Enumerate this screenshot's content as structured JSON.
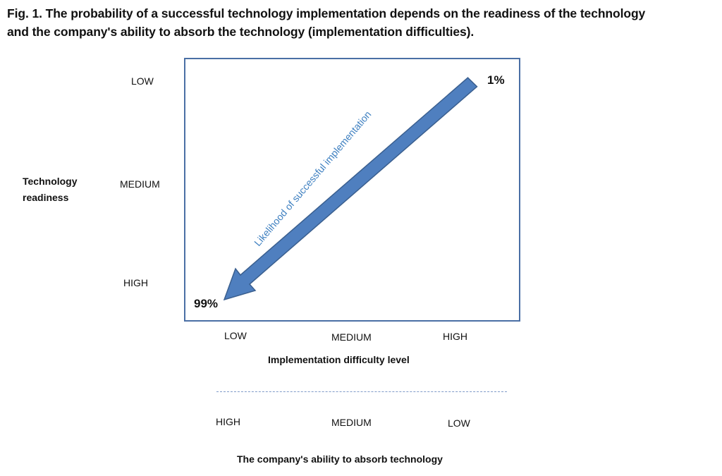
{
  "figure": {
    "caption_line1": "Fig. 1. The probability of a successful technology implementation depends on the readiness of the technology",
    "caption_line2": "and the company's ability to absorb the technology (implementation difficulties)."
  },
  "y_axis": {
    "title_line1": "Technology",
    "title_line2": "readiness",
    "levels": [
      "LOW",
      "MEDIUM",
      "HIGH"
    ]
  },
  "x_axis_top": {
    "levels": [
      "LOW",
      "MEDIUM",
      "HIGH"
    ],
    "title": "Implementation difficulty level"
  },
  "x_axis_bottom": {
    "levels": [
      "HIGH",
      "MEDIUM",
      "LOW"
    ],
    "title": "The company's ability to absorb technology"
  },
  "arrow": {
    "label": "Likelihood of successful implementation",
    "start_value": "1%",
    "end_value": "99%"
  },
  "colors": {
    "frame": "#4a6fa5",
    "arrow_fill": "#4f7fbf",
    "arrow_stroke": "#3a5f8f",
    "arrow_label": "#3d7fc0"
  }
}
